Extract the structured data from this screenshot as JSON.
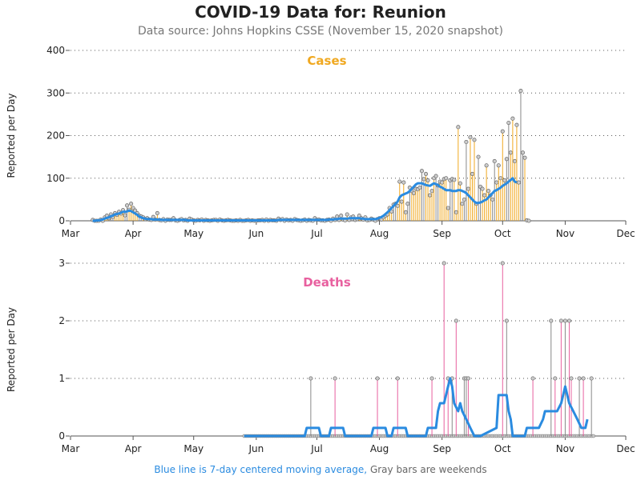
{
  "title": "COVID-19 Data for: Reunion",
  "subtitle": "Data source: Johns Hopkins CSSE (November 15, 2020 snapshot)",
  "footnote": {
    "blue": "Blue line is 7-day centered moving average,",
    "gray": "Gray bars are weekends"
  },
  "colors": {
    "cases": "#f0a820",
    "deaths": "#e8609f",
    "weekend": "#888888",
    "avg": "#2a8be0",
    "marker_fill": "#cccccc"
  },
  "chart_data": [
    {
      "type": "bar",
      "title": "Cases",
      "ylabel": "Reported per Day",
      "xlabel": "",
      "ylim": [
        0,
        400
      ],
      "yticks": [
        0,
        100,
        200,
        300,
        400
      ],
      "grid": true,
      "x_tick_labels": [
        "Mar",
        "Apr",
        "May",
        "Jun",
        "Jul",
        "Aug",
        "Sep",
        "Oct",
        "Nov",
        "Dec"
      ],
      "x_start": "2020-03-12",
      "values": [
        2,
        0,
        0,
        0,
        3,
        0,
        8,
        12,
        6,
        15,
        9,
        18,
        14,
        21,
        17,
        25,
        13,
        36,
        26,
        40,
        30,
        24,
        18,
        12,
        10,
        8,
        4,
        6,
        3,
        2,
        9,
        3,
        18,
        2,
        1,
        4,
        0,
        3,
        2,
        2,
        6,
        1,
        0,
        2,
        4,
        1,
        2,
        0,
        5,
        3,
        1,
        0,
        2,
        1,
        3,
        0,
        2,
        1,
        0,
        1,
        2,
        2,
        0,
        3,
        1,
        0,
        1,
        2,
        1,
        0,
        0,
        1,
        0,
        2,
        0,
        0,
        1,
        2,
        0,
        1,
        0,
        0,
        1,
        1,
        2,
        0,
        3,
        0,
        2,
        1,
        1,
        0,
        5,
        2,
        4,
        0,
        3,
        1,
        2,
        0,
        4,
        2,
        1,
        0,
        1,
        3,
        0,
        2,
        1,
        0,
        6,
        2,
        3,
        1,
        1,
        0,
        2,
        3,
        0,
        5,
        2,
        10,
        2,
        12,
        3,
        1,
        15,
        2,
        8,
        10,
        2,
        4,
        12,
        6,
        3,
        8,
        1,
        2,
        5,
        3,
        0,
        4,
        6,
        3,
        8,
        12,
        15,
        30,
        22,
        38,
        40,
        35,
        92,
        45,
        90,
        20,
        40,
        78,
        70,
        65,
        75,
        74,
        78,
        117,
        98,
        110,
        95,
        60,
        70,
        100,
        105,
        83,
        92,
        90,
        98,
        100,
        30,
        95,
        98,
        96,
        20,
        220,
        88,
        40,
        50,
        185,
        75,
        196,
        110,
        190,
        40,
        150,
        80,
        75,
        60,
        130,
        70,
        60,
        50,
        140,
        90,
        130,
        100,
        210,
        95,
        145,
        230,
        160,
        240,
        140,
        225,
        90,
        305,
        160,
        148,
        1,
        0
      ],
      "weekend_pattern": "every 7th/8th day reported as 0 (gray markers at baseline)",
      "moving_average_color": "blue",
      "moving_average": [
        0,
        0,
        1,
        1,
        2,
        3,
        5,
        7,
        8,
        11,
        12,
        15,
        16,
        17,
        19,
        21,
        21,
        22,
        24,
        23,
        20,
        17,
        14,
        10,
        8,
        6,
        5,
        4,
        4,
        4,
        3,
        3,
        3,
        3,
        2,
        2,
        2,
        2,
        2,
        2,
        2,
        2,
        2,
        2,
        2,
        2,
        2,
        1,
        1,
        1,
        1,
        1,
        1,
        1,
        1,
        1,
        1,
        1,
        1,
        1,
        1,
        1,
        1,
        1,
        1,
        1,
        1,
        1,
        1,
        1,
        1,
        1,
        1,
        1,
        1,
        1,
        1,
        1,
        1,
        1,
        1,
        1,
        1,
        1,
        1,
        1,
        1,
        1,
        1,
        1,
        1,
        1,
        2,
        2,
        2,
        2,
        2,
        2,
        2,
        2,
        2,
        2,
        2,
        2,
        2,
        2,
        2,
        2,
        2,
        2,
        2,
        2,
        2,
        2,
        2,
        2,
        2,
        3,
        3,
        3,
        4,
        4,
        5,
        5,
        5,
        5,
        5,
        6,
        6,
        6,
        6,
        6,
        6,
        5,
        5,
        4,
        4,
        4,
        4,
        4,
        4,
        5,
        7,
        9,
        12,
        16,
        20,
        25,
        30,
        35,
        40,
        45,
        55,
        60,
        62,
        64,
        66,
        70,
        75,
        80,
        85,
        88,
        88,
        88,
        86,
        84,
        83,
        82,
        85,
        88,
        86,
        84,
        80,
        78,
        75,
        72,
        72,
        72,
        70,
        70,
        70,
        72,
        72,
        70,
        68,
        65,
        60,
        55,
        50,
        45,
        42,
        42,
        43,
        45,
        48,
        50,
        55,
        60,
        65,
        70,
        72,
        75,
        78,
        82,
        85,
        88,
        92,
        96,
        100,
        92,
        90
      ]
    },
    {
      "type": "bar",
      "title": "Deaths",
      "ylabel": "Reported per Day",
      "xlabel": "",
      "ylim": [
        0,
        3
      ],
      "yticks": [
        0,
        1,
        2,
        3
      ],
      "grid": true,
      "x_tick_labels": [
        "Mar",
        "Apr",
        "May",
        "Jun",
        "Jul",
        "Aug",
        "Sep",
        "Oct",
        "Nov",
        "Dec"
      ],
      "x_start": "2020-05-26",
      "death_events": [
        {
          "date": "2020-06-28",
          "value": 1
        },
        {
          "date": "2020-07-10",
          "value": 1
        },
        {
          "date": "2020-07-31",
          "value": 1
        },
        {
          "date": "2020-08-10",
          "value": 1
        },
        {
          "date": "2020-08-27",
          "value": 1
        },
        {
          "date": "2020-09-02",
          "value": 3
        },
        {
          "date": "2020-09-04",
          "value": 1
        },
        {
          "date": "2020-09-06",
          "value": 1
        },
        {
          "date": "2020-09-08",
          "value": 2
        },
        {
          "date": "2020-09-12",
          "value": 1
        },
        {
          "date": "2020-09-13",
          "value": 1
        },
        {
          "date": "2020-09-14",
          "value": 1
        },
        {
          "date": "2020-10-01",
          "value": 3
        },
        {
          "date": "2020-10-03",
          "value": 2
        },
        {
          "date": "2020-10-16",
          "value": 1
        },
        {
          "date": "2020-10-25",
          "value": 2
        },
        {
          "date": "2020-10-27",
          "value": 1
        },
        {
          "date": "2020-10-30",
          "value": 2
        },
        {
          "date": "2020-11-01",
          "value": 2
        },
        {
          "date": "2020-11-03",
          "value": 2
        },
        {
          "date": "2020-11-04",
          "value": 1
        },
        {
          "date": "2020-11-08",
          "value": 1
        },
        {
          "date": "2020-11-10",
          "value": 1
        },
        {
          "date": "2020-11-14",
          "value": 1
        }
      ],
      "moving_average": [
        {
          "date": "2020-05-26",
          "value": 0
        },
        {
          "date": "2020-06-25",
          "value": 0
        },
        {
          "date": "2020-06-26",
          "value": 0.14
        },
        {
          "date": "2020-07-02",
          "value": 0.14
        },
        {
          "date": "2020-07-03",
          "value": 0
        },
        {
          "date": "2020-07-07",
          "value": 0
        },
        {
          "date": "2020-07-08",
          "value": 0.14
        },
        {
          "date": "2020-07-14",
          "value": 0.14
        },
        {
          "date": "2020-07-15",
          "value": 0
        },
        {
          "date": "2020-07-28",
          "value": 0
        },
        {
          "date": "2020-07-29",
          "value": 0.14
        },
        {
          "date": "2020-08-04",
          "value": 0.14
        },
        {
          "date": "2020-08-05",
          "value": 0
        },
        {
          "date": "2020-08-07",
          "value": 0
        },
        {
          "date": "2020-08-08",
          "value": 0.14
        },
        {
          "date": "2020-08-14",
          "value": 0.14
        },
        {
          "date": "2020-08-15",
          "value": 0
        },
        {
          "date": "2020-08-24",
          "value": 0
        },
        {
          "date": "2020-08-25",
          "value": 0.14
        },
        {
          "date": "2020-08-29",
          "value": 0.14
        },
        {
          "date": "2020-08-30",
          "value": 0.43
        },
        {
          "date": "2020-08-31",
          "value": 0.57
        },
        {
          "date": "2020-09-02",
          "value": 0.57
        },
        {
          "date": "2020-09-04",
          "value": 0.86
        },
        {
          "date": "2020-09-05",
          "value": 1.0
        },
        {
          "date": "2020-09-06",
          "value": 0.86
        },
        {
          "date": "2020-09-07",
          "value": 0.57
        },
        {
          "date": "2020-09-09",
          "value": 0.43
        },
        {
          "date": "2020-09-10",
          "value": 0.57
        },
        {
          "date": "2020-09-11",
          "value": 0.43
        },
        {
          "date": "2020-09-13",
          "value": 0.29
        },
        {
          "date": "2020-09-15",
          "value": 0.14
        },
        {
          "date": "2020-09-17",
          "value": 0
        },
        {
          "date": "2020-09-20",
          "value": 0
        },
        {
          "date": "2020-09-28",
          "value": 0.14
        },
        {
          "date": "2020-09-29",
          "value": 0.71
        },
        {
          "date": "2020-10-03",
          "value": 0.71
        },
        {
          "date": "2020-10-04",
          "value": 0.43
        },
        {
          "date": "2020-10-05",
          "value": 0.29
        },
        {
          "date": "2020-10-06",
          "value": 0
        },
        {
          "date": "2020-10-12",
          "value": 0
        },
        {
          "date": "2020-10-13",
          "value": 0.14
        },
        {
          "date": "2020-10-19",
          "value": 0.14
        },
        {
          "date": "2020-10-21",
          "value": 0.29
        },
        {
          "date": "2020-10-22",
          "value": 0.43
        },
        {
          "date": "2020-10-28",
          "value": 0.43
        },
        {
          "date": "2020-10-30",
          "value": 0.57
        },
        {
          "date": "2020-11-01",
          "value": 0.86
        },
        {
          "date": "2020-11-03",
          "value": 0.57
        },
        {
          "date": "2020-11-05",
          "value": 0.43
        },
        {
          "date": "2020-11-07",
          "value": 0.29
        },
        {
          "date": "2020-11-09",
          "value": 0.14
        },
        {
          "date": "2020-11-11",
          "value": 0.14
        },
        {
          "date": "2020-11-12",
          "value": 0.29
        }
      ],
      "x_end": "2020-11-15"
    }
  ]
}
